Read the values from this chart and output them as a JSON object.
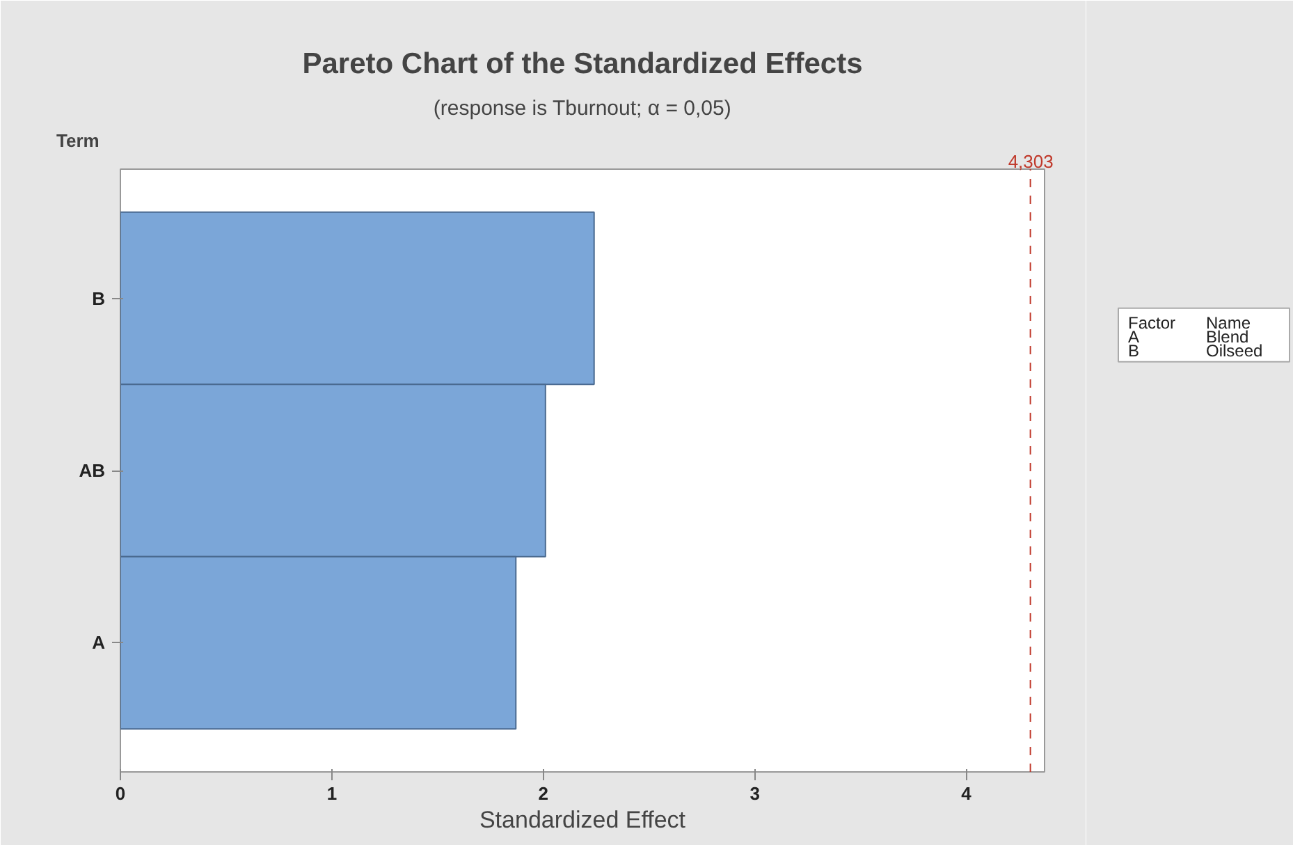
{
  "chart_data": {
    "type": "bar",
    "orientation": "horizontal",
    "title": "Pareto Chart of the Standardized Effects",
    "subtitle": "(response is Tburnout; α = 0,05)",
    "xlabel": "Standardized Effect",
    "ylabel": "Term",
    "categories": [
      "B",
      "AB",
      "A"
    ],
    "values": [
      2.24,
      2.01,
      1.87
    ],
    "color": "#7ba6d8",
    "xlim": [
      0,
      4.37
    ],
    "xticks": [
      0,
      1,
      2,
      3,
      4
    ],
    "grid": false,
    "ref_lines": [
      {
        "axis": "x",
        "value": 4.303,
        "label": "4,303",
        "color": "#c0392b",
        "line_style": "dashed"
      }
    ],
    "annotations": [
      "Factor",
      "Name",
      "A",
      "Blend",
      "B",
      "Oilseed"
    ]
  }
}
